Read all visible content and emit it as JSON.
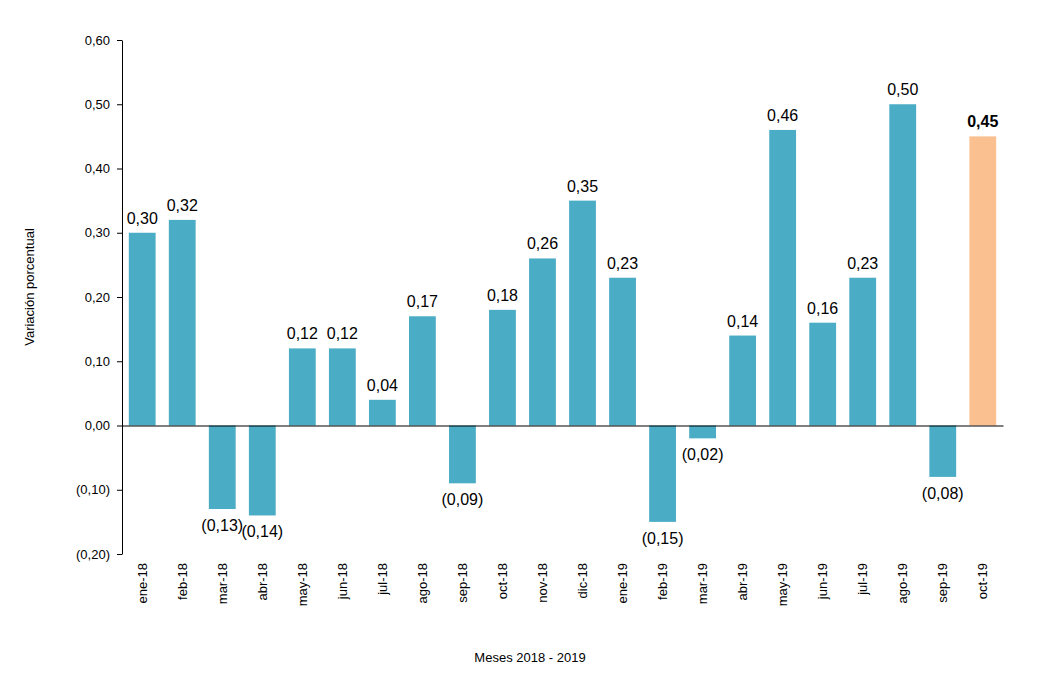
{
  "chart_data": {
    "type": "bar",
    "x_label": "Meses 2018 - 2019",
    "y_label": "Variación porcentual",
    "categories": [
      "ene-18",
      "feb-18",
      "mar-18",
      "abr-18",
      "may-18",
      "jun-18",
      "jul-18",
      "ago-18",
      "sep-18",
      "oct-18",
      "nov-18",
      "dic-18",
      "ene-19",
      "feb-19",
      "mar-19",
      "abr-19",
      "may-19",
      "jun-19",
      "jul-19",
      "ago-19",
      "sep-19",
      "oct-19"
    ],
    "values": [
      0.3,
      0.32,
      -0.13,
      -0.14,
      0.12,
      0.12,
      0.04,
      0.17,
      -0.09,
      0.18,
      0.26,
      0.35,
      0.23,
      -0.15,
      -0.02,
      0.14,
      0.46,
      0.16,
      0.23,
      0.5,
      -0.08,
      0.45
    ],
    "value_labels": [
      "0,30",
      "0,32",
      "(0,13)",
      "(0,14)",
      "0,12",
      "0,12",
      "0,04",
      "0,17",
      "(0,09)",
      "0,18",
      "0,26",
      "0,35",
      "0,23",
      "(0,15)",
      "(0,02)",
      "0,14",
      "0,46",
      "0,16",
      "0,23",
      "0,50",
      "(0,08)",
      "0,45"
    ],
    "colors": [
      "#4BACC6",
      "#4BACC6",
      "#4BACC6",
      "#4BACC6",
      "#4BACC6",
      "#4BACC6",
      "#4BACC6",
      "#4BACC6",
      "#4BACC6",
      "#4BACC6",
      "#4BACC6",
      "#4BACC6",
      "#4BACC6",
      "#4BACC6",
      "#4BACC6",
      "#4BACC6",
      "#4BACC6",
      "#4BACC6",
      "#4BACC6",
      "#4BACC6",
      "#4BACC6",
      "#FAC090"
    ],
    "ylim": [
      -0.2,
      0.6
    ],
    "yticks": [
      {
        "value": -0.2,
        "label": "(0,20)"
      },
      {
        "value": -0.1,
        "label": "(0,10)"
      },
      {
        "value": 0,
        "label": "0,00"
      },
      {
        "value": 0.1,
        "label": "0,10"
      },
      {
        "value": 0.2,
        "label": "0,20"
      },
      {
        "value": 0.3,
        "label": "0,30"
      },
      {
        "value": 0.4,
        "label": "0,40"
      },
      {
        "value": 0.5,
        "label": "0,50"
      },
      {
        "value": 0.6,
        "label": "0,60"
      }
    ],
    "grid": false,
    "data_labels": true
  }
}
